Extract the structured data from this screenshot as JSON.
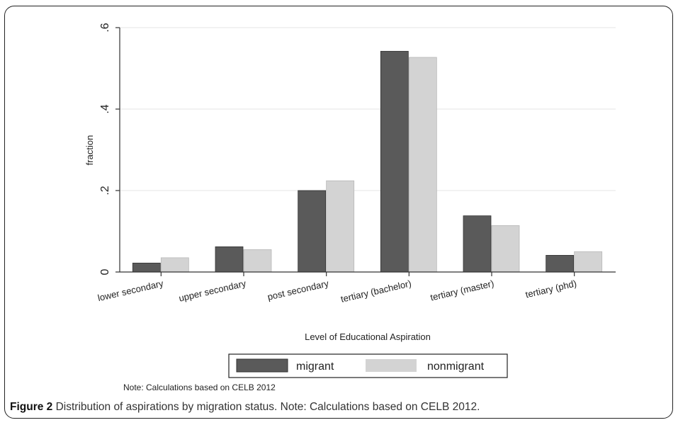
{
  "chart_data": {
    "type": "bar",
    "categories": [
      "lower secondary",
      "upper secondary",
      "post secondary",
      "tertiary (bachelor)",
      "tertiary  (master)",
      "tertiary (phd)"
    ],
    "series": [
      {
        "name": "migrant",
        "color": "#5a5a5a",
        "values": [
          0.022,
          0.062,
          0.2,
          0.542,
          0.138,
          0.041
        ]
      },
      {
        "name": "nonmigrant",
        "color": "#d3d3d3",
        "values": [
          0.035,
          0.055,
          0.224,
          0.527,
          0.114,
          0.05
        ]
      }
    ],
    "ylabel": "fraction",
    "xlabel": "Level of Educational Aspiration",
    "ylim": [
      0,
      0.6
    ],
    "yticks": [
      0,
      0.2,
      0.4,
      0.6
    ],
    "ytick_labels": [
      "0",
      ".2",
      ".4",
      ".6"
    ],
    "grid": true,
    "legend_position": "bottom-center",
    "note": "Note: Calculations based on CELB 2012"
  },
  "caption": {
    "label": "Figure 2",
    "text": " Distribution of aspirations by migration status. Note: Calculations  based  on CELB 2012."
  }
}
